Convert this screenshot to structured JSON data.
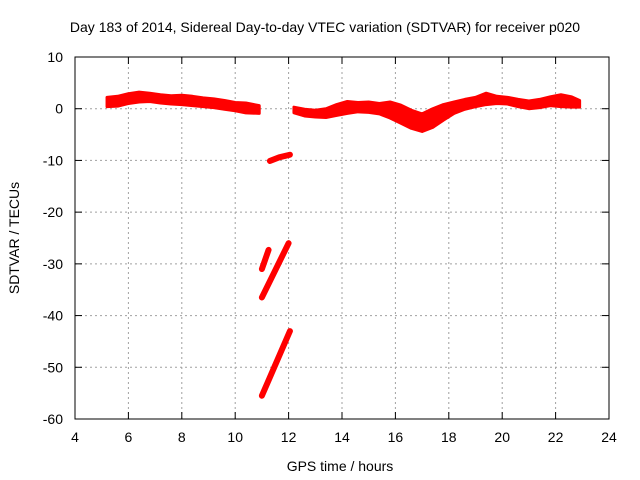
{
  "chart_data": {
    "type": "scatter",
    "title": "Day 183 of 2014, Sidereal Day-to-day VTEC variation (SDTVAR) for receiver p020",
    "xlabel": "GPS time / hours",
    "ylabel": "SDTVAR / TECUs",
    "xlim": [
      4,
      24
    ],
    "ylim": [
      -60,
      10
    ],
    "xticks": [
      4,
      6,
      8,
      10,
      12,
      14,
      16,
      18,
      20,
      22,
      24
    ],
    "yticks": [
      -60,
      -50,
      -40,
      -30,
      -20,
      -10,
      0,
      10
    ],
    "grid": true,
    "series_color": "#ff0000",
    "series": [
      {
        "name": "band-morning",
        "style": "band",
        "x": [
          5.2,
          5.6,
          6.0,
          6.4,
          6.8,
          7.2,
          7.6,
          8.0,
          8.4,
          8.8,
          9.2,
          9.6,
          10.0,
          10.4,
          10.9
        ],
        "upper": [
          2.2,
          2.4,
          2.9,
          3.2,
          3.0,
          2.7,
          2.5,
          2.6,
          2.4,
          2.1,
          1.9,
          1.6,
          1.2,
          1.1,
          0.6
        ],
        "lower": [
          0.4,
          0.5,
          1.0,
          1.3,
          1.4,
          1.1,
          0.9,
          0.8,
          0.6,
          0.4,
          0.2,
          -0.1,
          -0.4,
          -0.8,
          -0.9
        ]
      },
      {
        "name": "band-afternoon",
        "style": "band",
        "x": [
          12.2,
          12.6,
          13.0,
          13.4,
          13.8,
          14.2,
          14.6,
          15.0,
          15.4,
          15.8,
          16.2,
          16.6,
          17.0,
          17.4,
          17.8,
          18.2,
          18.6,
          19.0,
          19.4,
          19.8,
          20.2,
          20.6,
          21.0,
          21.4,
          21.8,
          22.2,
          22.6,
          22.9
        ],
        "upper": [
          0.3,
          -0.1,
          -0.3,
          0.0,
          0.8,
          1.4,
          1.2,
          1.3,
          1.0,
          1.3,
          0.7,
          -0.3,
          -1.0,
          0.0,
          0.8,
          1.3,
          1.8,
          2.2,
          3.0,
          2.4,
          2.2,
          1.8,
          1.5,
          1.8,
          2.3,
          2.7,
          2.3,
          1.6
        ],
        "lower": [
          -0.8,
          -1.4,
          -1.6,
          -1.7,
          -1.3,
          -0.9,
          -0.6,
          -0.7,
          -1.0,
          -1.8,
          -2.8,
          -3.8,
          -4.4,
          -3.6,
          -2.2,
          -0.9,
          -0.1,
          0.4,
          0.8,
          1.0,
          0.9,
          0.4,
          0.0,
          0.2,
          0.6,
          0.4,
          0.3,
          0.3
        ]
      },
      {
        "name": "arc-near-minus-9",
        "style": "segment",
        "x": [
          11.3,
          11.65,
          12.05
        ],
        "y": [
          -10.1,
          -9.4,
          -8.9
        ]
      },
      {
        "name": "arc-short-minus-28",
        "style": "segment",
        "x": [
          11.0,
          11.25
        ],
        "y": [
          -31.0,
          -27.3
        ]
      },
      {
        "name": "arc-minus-36-to-minus-26",
        "style": "segment",
        "x": [
          11.0,
          12.0
        ],
        "y": [
          -36.5,
          -26.0
        ]
      },
      {
        "name": "arc-minus-55-to-minus-43",
        "style": "segment",
        "x": [
          11.0,
          12.05
        ],
        "y": [
          -55.5,
          -43.0
        ]
      }
    ]
  }
}
